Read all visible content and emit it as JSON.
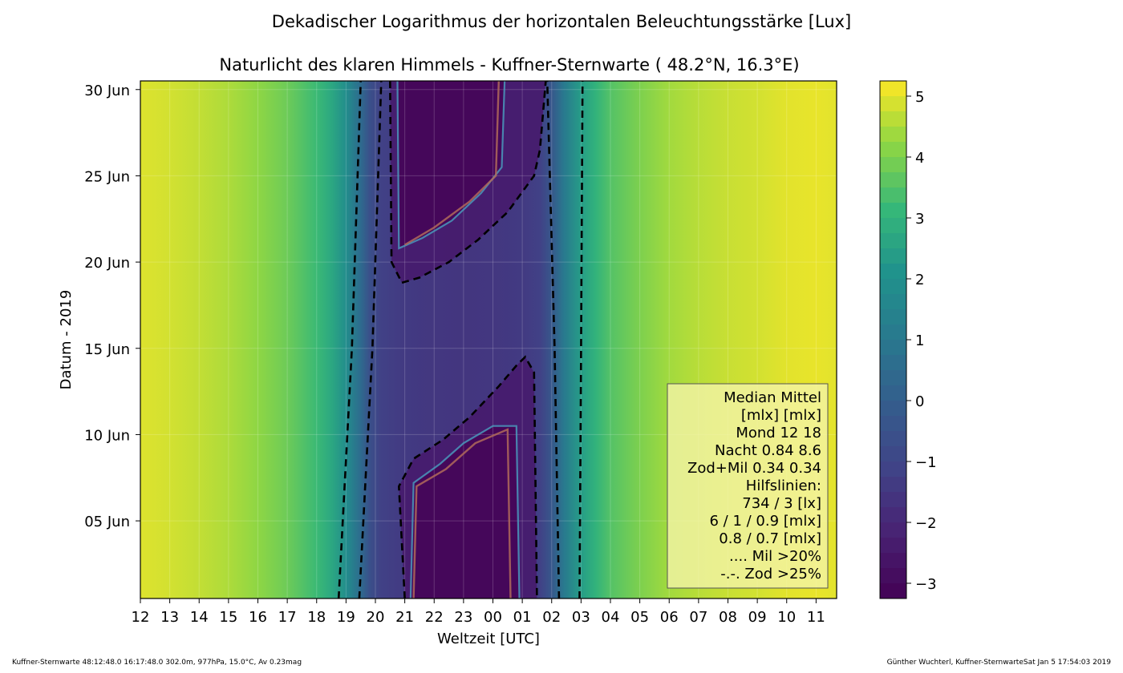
{
  "chart_data": {
    "type": "heatmap",
    "suptitle": "Dekadischer Logarithmus der horizontalen Beleuchtungsstärke [Lux]",
    "title": "Naturlicht des klaren Himmels - Kuffner-Sternwarte ( 48.2°N, 16.3°E)",
    "xlabel": "Weltzeit [UTC]",
    "ylabel": "Datum - 2019",
    "x_tick_labels": [
      "12",
      "13",
      "14",
      "15",
      "16",
      "17",
      "18",
      "19",
      "20",
      "21",
      "22",
      "23",
      "00",
      "01",
      "02",
      "03",
      "04",
      "05",
      "06",
      "07",
      "08",
      "09",
      "10",
      "11"
    ],
    "y_tick_labels": [
      "30 Jun",
      "25 Jun",
      "20 Jun",
      "15 Jun",
      "10 Jun",
      "05 Jun"
    ],
    "y_tick_days": [
      30,
      25,
      20,
      15,
      10,
      5
    ],
    "y_range_days": [
      0.5,
      30.5
    ],
    "x_range_hours": [
      12,
      35.7
    ],
    "colorbar": {
      "range": [
        -3.25,
        5.25
      ],
      "tick_values": [
        5,
        4,
        3,
        2,
        1,
        0,
        -1,
        -2,
        -3
      ],
      "tick_labels": [
        "5",
        "4",
        "3",
        "2",
        "1",
        "0",
        "−1",
        "−2",
        "−3"
      ]
    },
    "field_profile": {
      "hours": [
        12,
        13,
        14,
        15,
        16,
        17,
        18,
        18.5,
        19,
        19.5,
        19.8,
        20.2,
        21,
        22,
        23,
        24,
        25,
        25.6,
        26,
        26.4,
        27,
        27.5,
        28,
        29,
        30,
        31,
        32,
        33,
        34,
        35,
        35.7
      ],
      "values": [
        4.95,
        4.85,
        4.7,
        4.5,
        4.2,
        3.8,
        3.2,
        2.7,
        1.9,
        0.5,
        -0.6,
        -1.2,
        -1.4,
        -1.5,
        -1.55,
        -1.5,
        -1.4,
        -1.2,
        -0.3,
        1.0,
        2.4,
        3.0,
        3.5,
        4.0,
        4.4,
        4.6,
        4.75,
        4.85,
        5.0,
        5.05,
        5.0
      ]
    },
    "dark_regions": [
      {
        "days_top": [
          30.5,
          21
        ],
        "hour_left": 20.7,
        "hour_right": 24.3
      },
      {
        "days_bottom": [
          0.5,
          8
        ],
        "hour_left": 21.1,
        "hour_right": 24.9
      }
    ],
    "contours": {
      "dashed_left": [
        [
          18.75,
          0.5
        ],
        [
          19.2,
          15
        ],
        [
          19.5,
          30.5
        ]
      ],
      "dashed_left2": [
        [
          19.45,
          0.5
        ],
        [
          19.9,
          15
        ],
        [
          20.2,
          30.5
        ]
      ],
      "dashed_right": [
        [
          26.25,
          0.5
        ],
        [
          26.1,
          15
        ],
        [
          25.85,
          30.5
        ]
      ],
      "dashed_right2": [
        [
          26.95,
          0.5
        ],
        [
          27.0,
          15
        ],
        [
          27.05,
          30.5
        ]
      ],
      "upper_dip": [
        [
          20.5,
          30.5
        ],
        [
          20.55,
          20
        ],
        [
          20.9,
          18.8
        ],
        [
          21.5,
          19.1
        ],
        [
          22.5,
          20
        ],
        [
          23.5,
          21.3
        ],
        [
          24.5,
          22.9
        ],
        [
          25.4,
          25
        ],
        [
          25.6,
          26.5
        ],
        [
          25.8,
          30.5
        ]
      ],
      "lower_dip": [
        [
          21.0,
          0.5
        ],
        [
          20.8,
          7
        ],
        [
          21.3,
          8.6
        ],
        [
          22.3,
          9.7
        ],
        [
          23.2,
          11
        ],
        [
          24.2,
          12.8
        ],
        [
          24.8,
          14
        ],
        [
          25.1,
          14.5
        ],
        [
          25.4,
          13.6
        ],
        [
          25.5,
          0.5
        ]
      ]
    },
    "legend": {
      "placement": "lower-right",
      "lines": [
        "Median Mittel",
        "[mlx]  [mlx]",
        "Mond   12  18",
        "Nacht 0.84 8.6",
        "Zod+Mil 0.34  0.34",
        "Hilfslinien:",
        "734 / 3  [lx]",
        "6 /  1 / 0.9 [mlx]",
        "0.8 / 0.7 [mlx]",
        ".... Mil >20%",
        "-.-. Zod >25%"
      ]
    },
    "grid": true
  },
  "footer": {
    "left": "Kuffner-Sternwarte 48:12:48.0 16:17:48.0 302.0m,  977hPa, 15.0°C, Av 0.23mag",
    "right": "Günther Wuchterl, Kuffner-SternwarteSat Jan  5 17:54:03 2019"
  }
}
